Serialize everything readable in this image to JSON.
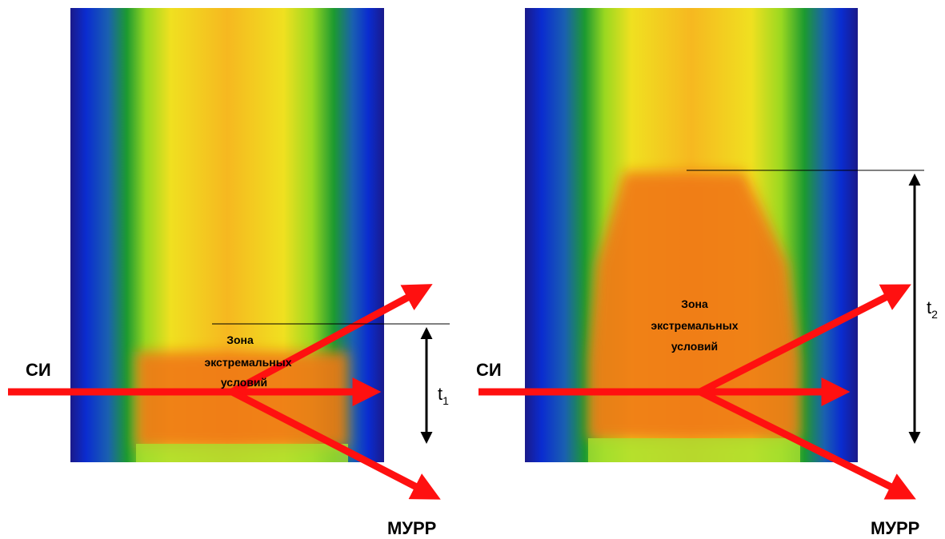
{
  "panels": [
    {
      "source_label": "СИ",
      "scatter_label": "МУРР",
      "zone_label": [
        "Зона",
        "экстремальных",
        "условий"
      ],
      "time_label": "t",
      "time_index": "1"
    },
    {
      "source_label": "СИ",
      "scatter_label": "МУРР",
      "zone_label": [
        "Зона",
        "экстремальных",
        "условий"
      ],
      "time_label": "t",
      "time_index": "2"
    }
  ]
}
